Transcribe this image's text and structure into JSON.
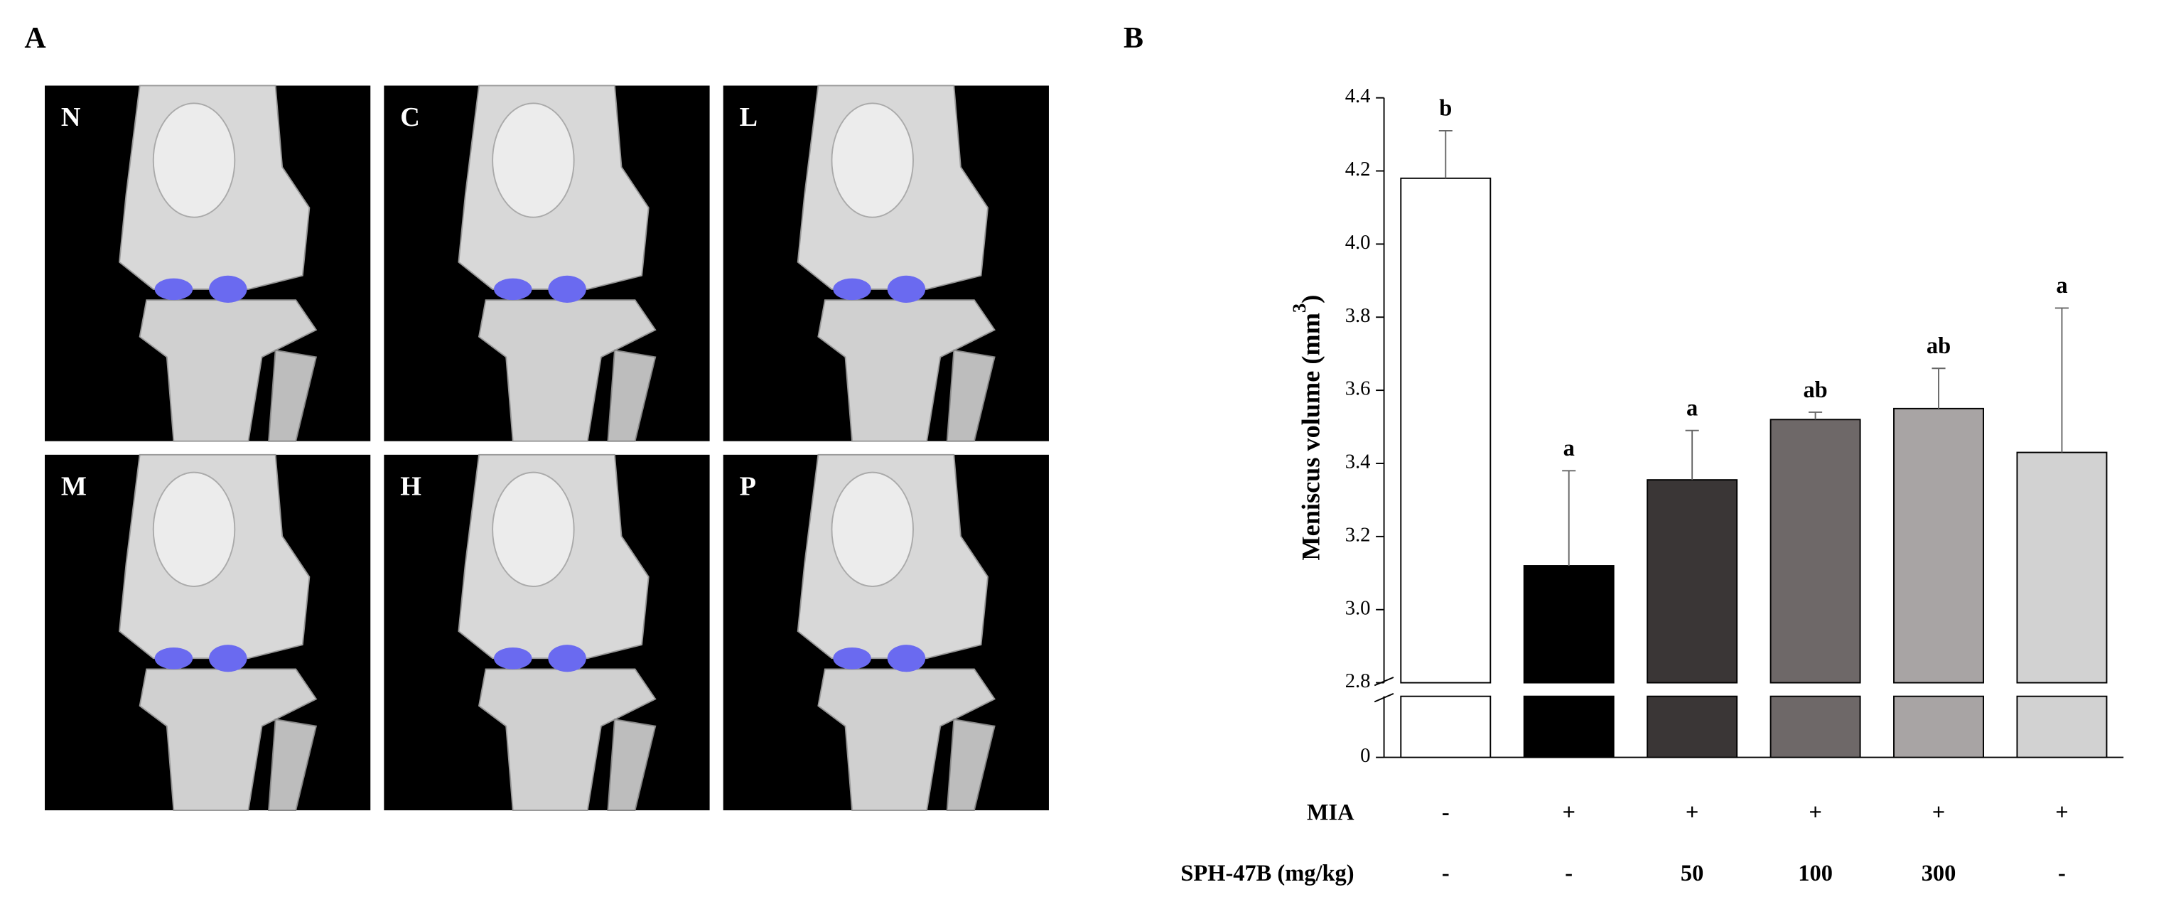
{
  "panel_a": {
    "label": "A",
    "panels": [
      "N",
      "C",
      "L",
      "M",
      "H",
      "P"
    ]
  },
  "chart_data": {
    "type": "bar",
    "panel_label": "B",
    "ylabel": "Meniscus volume (mm",
    "ylabel_sup": "3",
    "ylabel_end": ")",
    "categories": [
      null,
      null,
      null,
      null,
      null,
      null
    ],
    "values": [
      4.18,
      3.12,
      3.355,
      3.52,
      3.55,
      3.43
    ],
    "errors": [
      0.13,
      0.26,
      0.135,
      0.02,
      0.11,
      0.395
    ],
    "colors": [
      "#ffffff",
      "#000000",
      "#3a3636",
      "#6e6868",
      "#a8a4a4",
      "#d2d2d2"
    ],
    "annotations": [
      "b",
      "a",
      "a",
      "ab",
      "ab",
      "a"
    ],
    "ylim": [
      2.8,
      4.4
    ],
    "yticks": [
      2.8,
      {
        "value": 3,
        "label": "3.0"
      },
      3.2,
      3.4,
      3.6,
      3.8,
      {
        "value": 4,
        "label": "4.0"
      },
      4.2,
      4.4
    ],
    "lower_ylim": [
      0,
      1
    ],
    "lower_yticks": [
      0
    ],
    "rows": [
      {
        "label": "MIA",
        "cells": [
          "-",
          "+",
          "+",
          "+",
          "+",
          "+"
        ]
      },
      {
        "label": "SPH-47B  (mg/kg)",
        "cells": [
          "-",
          "-",
          "50",
          "100",
          "300",
          "-"
        ]
      }
    ]
  }
}
